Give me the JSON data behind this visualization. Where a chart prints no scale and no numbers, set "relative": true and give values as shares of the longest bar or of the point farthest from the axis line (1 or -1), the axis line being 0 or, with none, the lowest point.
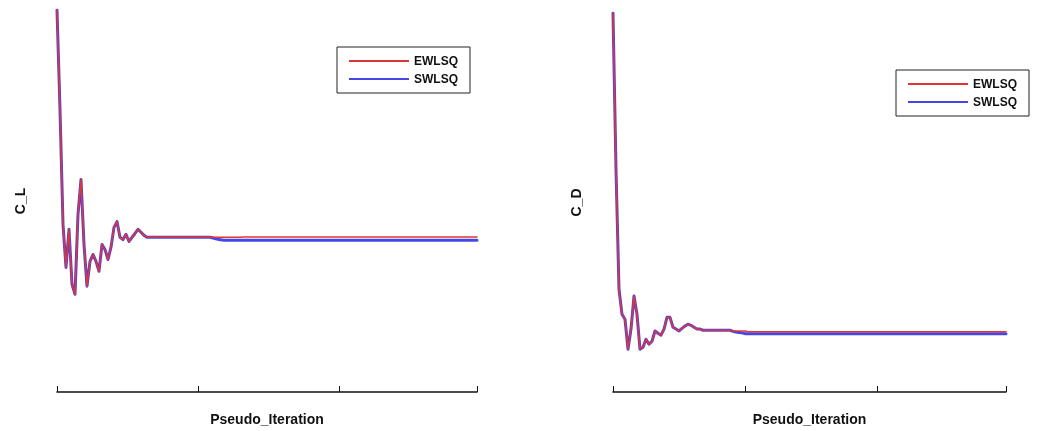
{
  "chart_data": [
    {
      "type": "line",
      "relative": true,
      "xlabel": "Pseudo_Iteration",
      "ylabel": "C_L",
      "legend": "top right",
      "grid": false,
      "marker": "none",
      "line_style": "solid",
      "categories": [
        null,
        null,
        null,
        null,
        null,
        null,
        null,
        null,
        null,
        null,
        null,
        null,
        null,
        null,
        null,
        null,
        null,
        null,
        null,
        null,
        null,
        null,
        null,
        null,
        null,
        null,
        null,
        null,
        null,
        null,
        null,
        null,
        null,
        null,
        null,
        null,
        null,
        null,
        null,
        null,
        null,
        null,
        null,
        null,
        null,
        null,
        null,
        null,
        null,
        null,
        null,
        null,
        null,
        null,
        null,
        null,
        null,
        null,
        null,
        null,
        null,
        null,
        null,
        null,
        null,
        null,
        null,
        null,
        null,
        null,
        null,
        null,
        null,
        null,
        null,
        null,
        null,
        null,
        null,
        null,
        null,
        null,
        null,
        null,
        null,
        null,
        null,
        null,
        null,
        null,
        null,
        null,
        null,
        null,
        null,
        null,
        null,
        null,
        null,
        null,
        null,
        null,
        null,
        null,
        null,
        null,
        null,
        null,
        null,
        null,
        null,
        null,
        null,
        null,
        null,
        null,
        null,
        null,
        null,
        null,
        null,
        null,
        null,
        null,
        null,
        null,
        null,
        null,
        null,
        null,
        null,
        null,
        null,
        null,
        null,
        null,
        null,
        null,
        null,
        null,
        null
      ],
      "series": [
        {
          "name": "EWLSQ",
          "color": "#e03535",
          "values": [
            1.0,
            0.739,
            0.439,
            0.326,
            0.426,
            0.282,
            0.256,
            0.465,
            0.556,
            0.386,
            0.277,
            0.342,
            0.36,
            0.342,
            0.316,
            0.386,
            0.373,
            0.347,
            0.379,
            0.431,
            0.446,
            0.405,
            0.399,
            0.413,
            0.394,
            0.405,
            0.415,
            0.426,
            0.418,
            0.41,
            0.405,
            0.405,
            0.405,
            0.405,
            0.405,
            0.405,
            0.405,
            0.405,
            0.405,
            0.405,
            0.405,
            0.405,
            0.405,
            0.405,
            0.405,
            0.405,
            0.405,
            0.405,
            0.405,
            0.405,
            0.405,
            0.405,
            0.405,
            0.405,
            0.405,
            0.405,
            0.405,
            0.405,
            0.405,
            0.405,
            0.405,
            0.405,
            0.406,
            0.406,
            0.406,
            0.406,
            0.406,
            0.406,
            0.406,
            0.406,
            0.406,
            0.406,
            0.406,
            0.406,
            0.406,
            0.406,
            0.406,
            0.406,
            0.406,
            0.406,
            0.406,
            0.406,
            0.406,
            0.406,
            0.406,
            0.406,
            0.406,
            0.406,
            0.406,
            0.406,
            0.406,
            0.406,
            0.406,
            0.406,
            0.406,
            0.406,
            0.406,
            0.406,
            0.406,
            0.406,
            0.406,
            0.406,
            0.406,
            0.406,
            0.406,
            0.406,
            0.406,
            0.406,
            0.406,
            0.406,
            0.406,
            0.406,
            0.406,
            0.406,
            0.406,
            0.406,
            0.406,
            0.406,
            0.406,
            0.406,
            0.406,
            0.406,
            0.406,
            0.406,
            0.406,
            0.406,
            0.406,
            0.406,
            0.406,
            0.406,
            0.406,
            0.406,
            0.406,
            0.406,
            0.406,
            0.406,
            0.406,
            0.406,
            0.406,
            0.406,
            0.406
          ]
        },
        {
          "name": "SWLSQ",
          "color": "#4545e8",
          "values": [
            1.0,
            0.739,
            0.439,
            0.326,
            0.426,
            0.282,
            0.256,
            0.465,
            0.556,
            0.386,
            0.277,
            0.342,
            0.36,
            0.342,
            0.316,
            0.386,
            0.373,
            0.347,
            0.379,
            0.431,
            0.446,
            0.405,
            0.399,
            0.413,
            0.394,
            0.405,
            0.415,
            0.426,
            0.418,
            0.41,
            0.405,
            0.405,
            0.405,
            0.405,
            0.405,
            0.405,
            0.405,
            0.405,
            0.405,
            0.405,
            0.405,
            0.405,
            0.405,
            0.405,
            0.405,
            0.405,
            0.405,
            0.405,
            0.405,
            0.405,
            0.405,
            0.405,
            0.403,
            0.401,
            0.399,
            0.398,
            0.397,
            0.397,
            0.397,
            0.397,
            0.397,
            0.397,
            0.397,
            0.397,
            0.397,
            0.397,
            0.397,
            0.397,
            0.397,
            0.397,
            0.397,
            0.397,
            0.397,
            0.397,
            0.397,
            0.397,
            0.397,
            0.397,
            0.397,
            0.397,
            0.397,
            0.397,
            0.397,
            0.397,
            0.397,
            0.397,
            0.397,
            0.397,
            0.397,
            0.397,
            0.397,
            0.397,
            0.397,
            0.397,
            0.397,
            0.397,
            0.397,
            0.397,
            0.397,
            0.397,
            0.397,
            0.397,
            0.397,
            0.397,
            0.397,
            0.397,
            0.397,
            0.397,
            0.397,
            0.397,
            0.397,
            0.397,
            0.397,
            0.397,
            0.397,
            0.397,
            0.397,
            0.397,
            0.397,
            0.397,
            0.397,
            0.397,
            0.397,
            0.397,
            0.397,
            0.397,
            0.397,
            0.397,
            0.397,
            0.397,
            0.397,
            0.397,
            0.397,
            0.397,
            0.397,
            0.397,
            0.397,
            0.397,
            0.397,
            0.397,
            0.397
          ]
        }
      ]
    },
    {
      "type": "line",
      "relative": true,
      "xlabel": "Pseudo_Iteration",
      "ylabel": "C_D",
      "legend": "top right",
      "grid": false,
      "marker": "none",
      "line_style": "solid",
      "categories": [
        null,
        null,
        null,
        null,
        null,
        null,
        null,
        null,
        null,
        null,
        null,
        null,
        null,
        null,
        null,
        null,
        null,
        null,
        null,
        null,
        null,
        null,
        null,
        null,
        null,
        null,
        null,
        null,
        null,
        null,
        null,
        null,
        null,
        null,
        null,
        null,
        null,
        null,
        null,
        null,
        null,
        null,
        null,
        null,
        null,
        null,
        null,
        null,
        null,
        null,
        null,
        null,
        null,
        null,
        null,
        null,
        null,
        null,
        null,
        null,
        null,
        null,
        null,
        null,
        null,
        null,
        null,
        null,
        null,
        null,
        null,
        null,
        null,
        null,
        null,
        null,
        null,
        null,
        null,
        null,
        null,
        null,
        null,
        null,
        null,
        null,
        null,
        null,
        null,
        null,
        null,
        null,
        null,
        null,
        null,
        null,
        null,
        null,
        null,
        null,
        null,
        null,
        null,
        null,
        null,
        null,
        null,
        null,
        null,
        null,
        null,
        null,
        null,
        null,
        null,
        null,
        null,
        null,
        null,
        null,
        null,
        null,
        null,
        null,
        null,
        null,
        null,
        null,
        null,
        null,
        null,
        null
      ],
      "series": [
        {
          "name": "EWLSQ",
          "color": "#e03535",
          "values": [
            1.0,
            0.587,
            0.271,
            0.205,
            0.192,
            0.113,
            0.166,
            0.253,
            0.205,
            0.113,
            0.118,
            0.139,
            0.126,
            0.134,
            0.161,
            0.155,
            0.15,
            0.166,
            0.197,
            0.197,
            0.171,
            0.166,
            0.161,
            0.168,
            0.174,
            0.179,
            0.176,
            0.171,
            0.166,
            0.166,
            0.163,
            0.163,
            0.163,
            0.163,
            0.163,
            0.163,
            0.163,
            0.163,
            0.163,
            0.163,
            0.161,
            0.161,
            0.161,
            0.161,
            0.161,
            0.159,
            0.159,
            0.159,
            0.159,
            0.159,
            0.159,
            0.159,
            0.159,
            0.159,
            0.159,
            0.159,
            0.159,
            0.159,
            0.159,
            0.159,
            0.159,
            0.159,
            0.159,
            0.159,
            0.159,
            0.159,
            0.159,
            0.159,
            0.159,
            0.159,
            0.159,
            0.159,
            0.159,
            0.159,
            0.159,
            0.159,
            0.159,
            0.159,
            0.159,
            0.159,
            0.159,
            0.159,
            0.159,
            0.159,
            0.159,
            0.159,
            0.159,
            0.159,
            0.159,
            0.159,
            0.159,
            0.159,
            0.159,
            0.159,
            0.159,
            0.159,
            0.159,
            0.159,
            0.159,
            0.159,
            0.159,
            0.159,
            0.159,
            0.159,
            0.159,
            0.159,
            0.159,
            0.159,
            0.159,
            0.159,
            0.159,
            0.159,
            0.159,
            0.159,
            0.159,
            0.159,
            0.159,
            0.159,
            0.159,
            0.159,
            0.159,
            0.159,
            0.159,
            0.159,
            0.159,
            0.159,
            0.159,
            0.159,
            0.159,
            0.159,
            0.159,
            0.159
          ]
        },
        {
          "name": "SWLSQ",
          "color": "#4545e8",
          "values": [
            1.0,
            0.587,
            0.271,
            0.205,
            0.192,
            0.113,
            0.166,
            0.253,
            0.205,
            0.113,
            0.118,
            0.139,
            0.126,
            0.134,
            0.161,
            0.155,
            0.15,
            0.166,
            0.197,
            0.197,
            0.171,
            0.166,
            0.161,
            0.168,
            0.174,
            0.179,
            0.176,
            0.171,
            0.166,
            0.166,
            0.163,
            0.163,
            0.163,
            0.163,
            0.163,
            0.163,
            0.163,
            0.163,
            0.163,
            0.163,
            0.16,
            0.158,
            0.157,
            0.156,
            0.154,
            0.154,
            0.154,
            0.154,
            0.154,
            0.154,
            0.154,
            0.154,
            0.154,
            0.154,
            0.154,
            0.154,
            0.154,
            0.154,
            0.154,
            0.154,
            0.154,
            0.154,
            0.154,
            0.154,
            0.154,
            0.154,
            0.154,
            0.154,
            0.154,
            0.154,
            0.154,
            0.154,
            0.154,
            0.154,
            0.154,
            0.154,
            0.154,
            0.154,
            0.154,
            0.154,
            0.154,
            0.154,
            0.154,
            0.154,
            0.154,
            0.154,
            0.154,
            0.154,
            0.154,
            0.154,
            0.154,
            0.154,
            0.154,
            0.154,
            0.154,
            0.154,
            0.154,
            0.154,
            0.154,
            0.154,
            0.154,
            0.154,
            0.154,
            0.154,
            0.154,
            0.154,
            0.154,
            0.154,
            0.154,
            0.154,
            0.154,
            0.154,
            0.154,
            0.154,
            0.154,
            0.154,
            0.154,
            0.154,
            0.154,
            0.154,
            0.154,
            0.154,
            0.154,
            0.154,
            0.154,
            0.154,
            0.154,
            0.154,
            0.154,
            0.154,
            0.154,
            0.154
          ]
        }
      ]
    }
  ]
}
